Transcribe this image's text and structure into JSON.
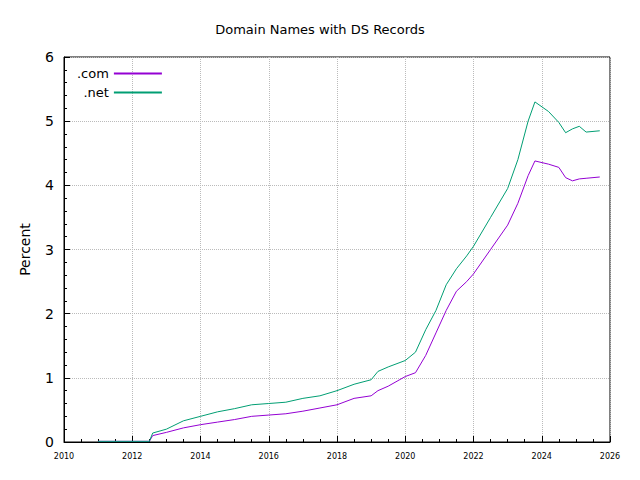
{
  "chart_data": {
    "type": "line",
    "title": "Domain Names with DS Records",
    "y_label": "Percent",
    "x": [
      2011,
      2012.5,
      2012.6,
      2013,
      2013.5,
      2014,
      2014.5,
      2015,
      2015.5,
      2016,
      2016.5,
      2017,
      2017.5,
      2018,
      2018.5,
      2019,
      2019.2,
      2019.5,
      2020,
      2020.3,
      2020.6,
      2020.9,
      2021.2,
      2021.5,
      2021.8,
      2022,
      2022.5,
      2023,
      2023.3,
      2023.6,
      2023.8,
      2024.2,
      2024.5,
      2024.7,
      2024.9,
      2025.1,
      2025.3,
      2025.7
    ],
    "series": [
      {
        "name": ".com",
        "color": "#9400d3",
        "values": [
          0.01,
          0.01,
          0.1,
          0.15,
          0.22,
          0.27,
          0.31,
          0.35,
          0.4,
          0.42,
          0.44,
          0.48,
          0.53,
          0.58,
          0.68,
          0.72,
          0.8,
          0.87,
          1.02,
          1.08,
          1.35,
          1.7,
          2.05,
          2.35,
          2.5,
          2.62,
          3.0,
          3.38,
          3.72,
          4.15,
          4.38,
          4.33,
          4.28,
          4.12,
          4.07,
          4.1,
          4.11,
          4.13
        ]
      },
      {
        "name": ".net",
        "color": "#009e73",
        "values": [
          0.01,
          0.01,
          0.14,
          0.2,
          0.33,
          0.4,
          0.47,
          0.52,
          0.58,
          0.6,
          0.62,
          0.68,
          0.72,
          0.8,
          0.9,
          0.97,
          1.1,
          1.17,
          1.27,
          1.4,
          1.75,
          2.05,
          2.45,
          2.7,
          2.9,
          3.05,
          3.5,
          3.95,
          4.4,
          5.0,
          5.3,
          5.15,
          4.98,
          4.82,
          4.88,
          4.92,
          4.83,
          4.85
        ]
      }
    ],
    "xlim": [
      2010,
      2026
    ],
    "xticks": [
      2010,
      2012,
      2014,
      2016,
      2018,
      2020,
      2022,
      2024,
      2026
    ],
    "ylim": [
      0,
      6
    ],
    "yticks": [
      0,
      1,
      2,
      3,
      4,
      5,
      6
    ],
    "grid": true,
    "legend": "top-left"
  }
}
